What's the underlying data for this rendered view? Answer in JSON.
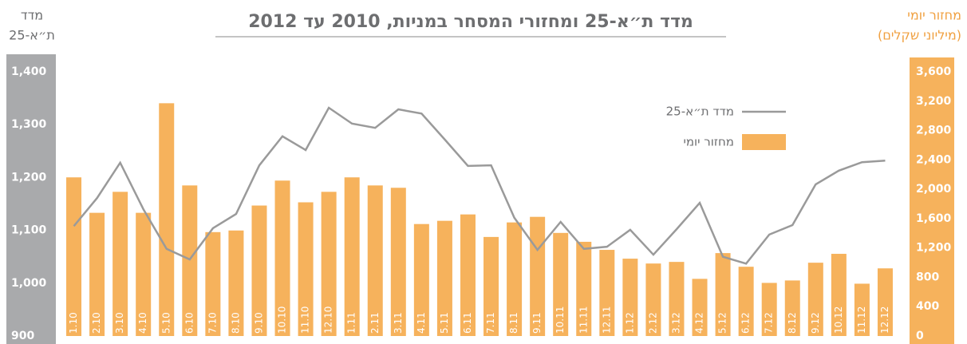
{
  "chart_data": {
    "type": "bar-line",
    "title": "מדד ת״א-25 ומחזורי המסחר במניות, 2010 עד 2012",
    "y_label": [
      "מדד",
      "ת״א-25"
    ],
    "y2_label": [
      "מחזור יומי",
      "(מיליוני שקלים)"
    ],
    "categories": [
      "1.10",
      "2.10",
      "3.10",
      "4.10",
      "5.10",
      "6.10",
      "7.10",
      "8.10",
      "9.10",
      "10.10",
      "11.10",
      "12.10",
      "1.11",
      "2.11",
      "3.11",
      "4.11",
      "5.11",
      "6.11",
      "7.11",
      "8.11",
      "9.11",
      "10.11",
      "11.11",
      "12.11",
      "1.12",
      "2.12",
      "3.12",
      "4.12",
      "5.12",
      "6.12",
      "7.12",
      "8.12",
      "9.12",
      "10.12",
      "11.12",
      "12.12"
    ],
    "series": [
      {
        "name": "מדד ת״א-25",
        "type": "line",
        "color": "#9a9a9a",
        "axis": "y",
        "values": [
          1108,
          1161,
          1228,
          1140,
          1065,
          1045,
          1104,
          1131,
          1223,
          1278,
          1252,
          1332,
          1302,
          1294,
          1329,
          1321,
          1272,
          1222,
          1223,
          1124,
          1063,
          1116,
          1065,
          1069,
          1101,
          1054,
          1102,
          1152,
          1050,
          1037,
          1092,
          1110,
          1187,
          1213,
          1229,
          1232
        ]
      },
      {
        "name": "מחזור יומי",
        "type": "bar",
        "color": "#f6b25c",
        "axis": "y2",
        "values": [
          2162,
          1679,
          1965,
          1679,
          3172,
          2052,
          1416,
          1438,
          1778,
          2118,
          1822,
          1965,
          2162,
          2052,
          2020,
          1526,
          1570,
          1657,
          1350,
          1548,
          1624,
          1405,
          1284,
          1174,
          1054,
          988,
          1010,
          779,
          1130,
          944,
          724,
          757,
          999,
          1120,
          713,
          922
        ]
      }
    ],
    "ylim": [
      900,
      1400
    ],
    "yticks": [
      900,
      {
        "value": 1000,
        "label": "1,000"
      },
      {
        "value": 1100,
        "label": "1,100"
      },
      {
        "value": 1200,
        "label": "1,200"
      },
      {
        "value": 1300,
        "label": "1,300"
      },
      {
        "value": 1400,
        "label": "1,400"
      }
    ],
    "y2lim": [
      0,
      3600
    ],
    "y2ticks": [
      0,
      400,
      800,
      {
        "value": 1200,
        "label": "1,200"
      },
      {
        "value": 1600,
        "label": "1,600"
      },
      {
        "value": 2000,
        "label": "2,000"
      },
      {
        "value": 2400,
        "label": "2,400"
      },
      {
        "value": 2800,
        "label": "2,800"
      },
      {
        "value": 3200,
        "label": "3,200"
      },
      {
        "value": 3600,
        "label": "3,600"
      }
    ],
    "grid": false,
    "legend": "upper right"
  }
}
